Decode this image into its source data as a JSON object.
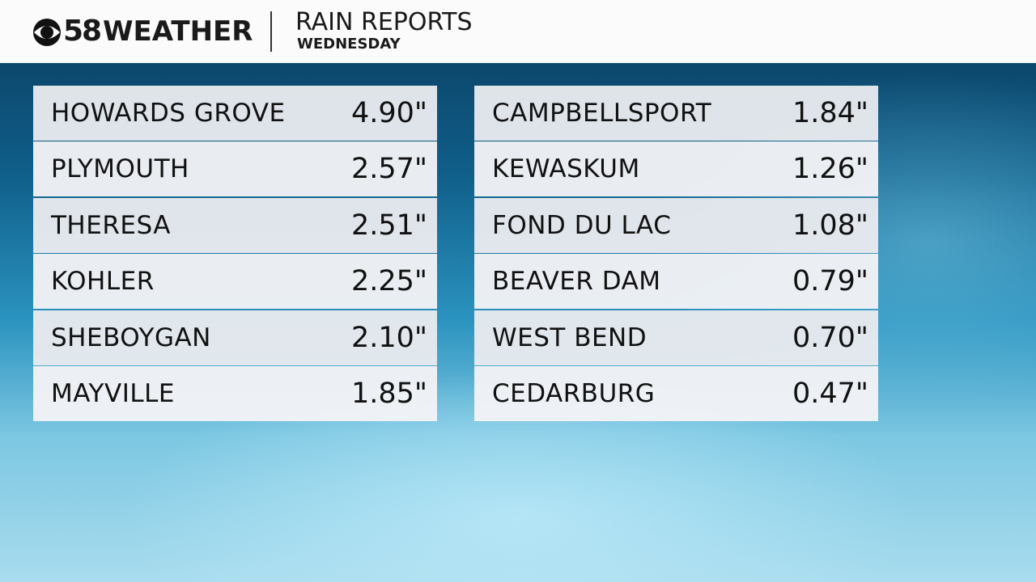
{
  "header": {
    "channel": "58",
    "brand": "WEATHER",
    "title": "RAIN REPORTS",
    "subtitle": "WEDNESDAY"
  },
  "tables": [
    {
      "rows": [
        [
          "HOWARDS GROVE",
          "4.90\""
        ],
        [
          "PLYMOUTH",
          "2.57\""
        ],
        [
          "THERESA",
          "2.51\""
        ],
        [
          "KOHLER",
          "2.25\""
        ],
        [
          "SHEBOYGAN",
          "2.10\""
        ],
        [
          "MAYVILLE",
          "1.85\""
        ]
      ]
    },
    {
      "rows": [
        [
          "CAMPBELLSPORT",
          "1.84\""
        ],
        [
          "KEWASKUM",
          "1.26\""
        ],
        [
          "FOND DU LAC",
          "1.08\""
        ],
        [
          "BEAVER DAM",
          "0.79\""
        ],
        [
          "WEST BEND",
          "0.70\""
        ],
        [
          "CEDARBURG",
          "0.47\""
        ]
      ]
    }
  ]
}
